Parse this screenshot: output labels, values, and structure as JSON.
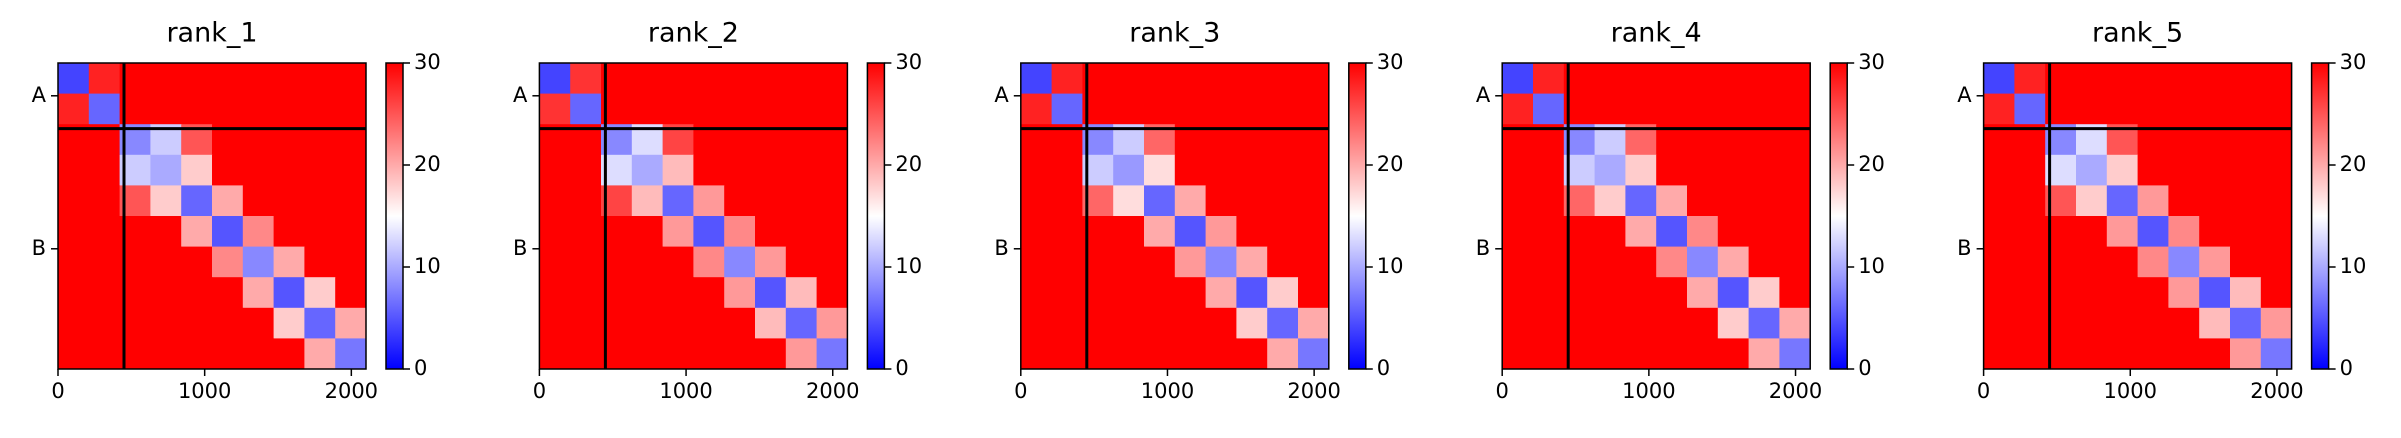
{
  "chart_data": [
    {
      "type": "heatmap",
      "title": "rank_1",
      "colormap": "bwr",
      "clim": [
        0,
        30
      ],
      "cticks": [
        0,
        10,
        20,
        30
      ],
      "xlim": [
        0,
        2100
      ],
      "xticks": [
        0,
        1000,
        2000
      ],
      "ylim": [
        2100,
        0
      ],
      "yticks": [
        {
          "value": 225,
          "label": "A"
        },
        {
          "value": 1275,
          "label": "B"
        }
      ],
      "chain_breaks": [
        450
      ],
      "bins": [
        0,
        210,
        420,
        630,
        840,
        1050,
        1260,
        1470,
        1680,
        1890,
        2100
      ],
      "values": [
        [
          4,
          28,
          30,
          30,
          30,
          30,
          30,
          30,
          30,
          30
        ],
        [
          28,
          6,
          30,
          30,
          30,
          30,
          30,
          30,
          30,
          30
        ],
        [
          30,
          30,
          8,
          12,
          25,
          30,
          30,
          30,
          30,
          30
        ],
        [
          30,
          30,
          12,
          10,
          18,
          30,
          30,
          30,
          30,
          30
        ],
        [
          30,
          30,
          25,
          18,
          6,
          20,
          30,
          30,
          30,
          30
        ],
        [
          30,
          30,
          30,
          30,
          20,
          5,
          22,
          30,
          30,
          30
        ],
        [
          30,
          30,
          30,
          30,
          30,
          22,
          8,
          20,
          30,
          30
        ],
        [
          30,
          30,
          30,
          30,
          30,
          30,
          20,
          5,
          18,
          30
        ],
        [
          30,
          30,
          30,
          30,
          30,
          30,
          30,
          18,
          6,
          20
        ],
        [
          30,
          30,
          30,
          30,
          30,
          30,
          30,
          30,
          20,
          7
        ]
      ]
    },
    {
      "type": "heatmap",
      "title": "rank_2",
      "colormap": "bwr",
      "clim": [
        0,
        30
      ],
      "cticks": [
        0,
        10,
        20,
        30
      ],
      "xlim": [
        0,
        2100
      ],
      "xticks": [
        0,
        1000,
        2000
      ],
      "ylim": [
        2100,
        0
      ],
      "yticks": [
        {
          "value": 225,
          "label": "A"
        },
        {
          "value": 1275,
          "label": "B"
        }
      ],
      "chain_breaks": [
        450
      ],
      "bins": [
        0,
        210,
        420,
        630,
        840,
        1050,
        1260,
        1470,
        1680,
        1890,
        2100
      ],
      "values": [
        [
          4,
          27,
          30,
          30,
          30,
          30,
          30,
          30,
          30,
          30
        ],
        [
          27,
          6,
          30,
          30,
          30,
          30,
          30,
          30,
          30,
          30
        ],
        [
          30,
          30,
          8,
          13,
          26,
          30,
          30,
          30,
          30,
          30
        ],
        [
          30,
          30,
          13,
          10,
          19,
          30,
          30,
          30,
          30,
          30
        ],
        [
          30,
          30,
          26,
          19,
          6,
          21,
          30,
          30,
          30,
          30
        ],
        [
          30,
          30,
          30,
          30,
          21,
          5,
          22,
          30,
          30,
          30
        ],
        [
          30,
          30,
          30,
          30,
          30,
          22,
          8,
          21,
          30,
          30
        ],
        [
          30,
          30,
          30,
          30,
          30,
          30,
          21,
          5,
          19,
          30
        ],
        [
          30,
          30,
          30,
          30,
          30,
          30,
          30,
          19,
          6,
          21
        ],
        [
          30,
          30,
          30,
          30,
          30,
          30,
          30,
          30,
          21,
          7
        ]
      ]
    },
    {
      "type": "heatmap",
      "title": "rank_3",
      "colormap": "bwr",
      "clim": [
        0,
        30
      ],
      "cticks": [
        0,
        10,
        20,
        30
      ],
      "xlim": [
        0,
        2100
      ],
      "xticks": [
        0,
        1000,
        2000
      ],
      "ylim": [
        2100,
        0
      ],
      "yticks": [
        {
          "value": 225,
          "label": "A"
        },
        {
          "value": 1275,
          "label": "B"
        }
      ],
      "chain_breaks": [
        450
      ],
      "bins": [
        0,
        210,
        420,
        630,
        840,
        1050,
        1260,
        1470,
        1680,
        1890,
        2100
      ],
      "values": [
        [
          4,
          28,
          30,
          30,
          30,
          30,
          30,
          30,
          30,
          30
        ],
        [
          28,
          6,
          30,
          30,
          30,
          30,
          30,
          30,
          30,
          30
        ],
        [
          30,
          30,
          8,
          12,
          24,
          30,
          30,
          30,
          30,
          30
        ],
        [
          30,
          30,
          12,
          9,
          17,
          30,
          30,
          30,
          30,
          30
        ],
        [
          30,
          30,
          24,
          17,
          6,
          20,
          30,
          30,
          30,
          30
        ],
        [
          30,
          30,
          30,
          30,
          20,
          5,
          21,
          30,
          30,
          30
        ],
        [
          30,
          30,
          30,
          30,
          30,
          21,
          8,
          20,
          30,
          30
        ],
        [
          30,
          30,
          30,
          30,
          30,
          30,
          20,
          5,
          18,
          30
        ],
        [
          30,
          30,
          30,
          30,
          30,
          30,
          30,
          18,
          6,
          20
        ],
        [
          30,
          30,
          30,
          30,
          30,
          30,
          30,
          30,
          20,
          7
        ]
      ]
    },
    {
      "type": "heatmap",
      "title": "rank_4",
      "colormap": "bwr",
      "clim": [
        0,
        30
      ],
      "cticks": [
        0,
        10,
        20,
        30
      ],
      "xlim": [
        0,
        2100
      ],
      "xticks": [
        0,
        1000,
        2000
      ],
      "ylim": [
        2100,
        0
      ],
      "yticks": [
        {
          "value": 225,
          "label": "A"
        },
        {
          "value": 1275,
          "label": "B"
        }
      ],
      "chain_breaks": [
        450
      ],
      "bins": [
        0,
        210,
        420,
        630,
        840,
        1050,
        1260,
        1470,
        1680,
        1890,
        2100
      ],
      "values": [
        [
          4,
          28,
          30,
          30,
          30,
          30,
          30,
          30,
          30,
          30
        ],
        [
          28,
          6,
          30,
          30,
          30,
          30,
          30,
          30,
          30,
          30
        ],
        [
          30,
          30,
          8,
          12,
          24,
          30,
          30,
          30,
          30,
          30
        ],
        [
          30,
          30,
          12,
          10,
          18,
          30,
          30,
          30,
          30,
          30
        ],
        [
          30,
          30,
          24,
          18,
          6,
          20,
          30,
          30,
          30,
          30
        ],
        [
          30,
          30,
          30,
          30,
          20,
          5,
          22,
          30,
          30,
          30
        ],
        [
          30,
          30,
          30,
          30,
          30,
          22,
          8,
          20,
          30,
          30
        ],
        [
          30,
          30,
          30,
          30,
          30,
          30,
          20,
          5,
          18,
          30
        ],
        [
          30,
          30,
          30,
          30,
          30,
          30,
          30,
          18,
          6,
          20
        ],
        [
          30,
          30,
          30,
          30,
          30,
          30,
          30,
          30,
          20,
          7
        ]
      ]
    },
    {
      "type": "heatmap",
      "title": "rank_5",
      "colormap": "bwr",
      "clim": [
        0,
        30
      ],
      "cticks": [
        0,
        10,
        20,
        30
      ],
      "xlim": [
        0,
        2100
      ],
      "xticks": [
        0,
        1000,
        2000
      ],
      "ylim": [
        2100,
        0
      ],
      "yticks": [
        {
          "value": 225,
          "label": "A"
        },
        {
          "value": 1275,
          "label": "B"
        }
      ],
      "chain_breaks": [
        450
      ],
      "bins": [
        0,
        210,
        420,
        630,
        840,
        1050,
        1260,
        1470,
        1680,
        1890,
        2100
      ],
      "values": [
        [
          4,
          28,
          30,
          30,
          30,
          30,
          30,
          30,
          30,
          30
        ],
        [
          28,
          6,
          30,
          30,
          30,
          30,
          30,
          30,
          30,
          30
        ],
        [
          30,
          30,
          8,
          13,
          25,
          30,
          30,
          30,
          30,
          30
        ],
        [
          30,
          30,
          13,
          10,
          18,
          30,
          30,
          30,
          30,
          30
        ],
        [
          30,
          30,
          25,
          18,
          6,
          21,
          30,
          30,
          30,
          30
        ],
        [
          30,
          30,
          30,
          30,
          21,
          5,
          22,
          30,
          30,
          30
        ],
        [
          30,
          30,
          30,
          30,
          30,
          22,
          8,
          21,
          30,
          30
        ],
        [
          30,
          30,
          30,
          30,
          30,
          30,
          21,
          5,
          19,
          30
        ],
        [
          30,
          30,
          30,
          30,
          30,
          30,
          30,
          19,
          6,
          21
        ],
        [
          30,
          30,
          30,
          30,
          30,
          30,
          30,
          30,
          21,
          7
        ]
      ]
    }
  ]
}
